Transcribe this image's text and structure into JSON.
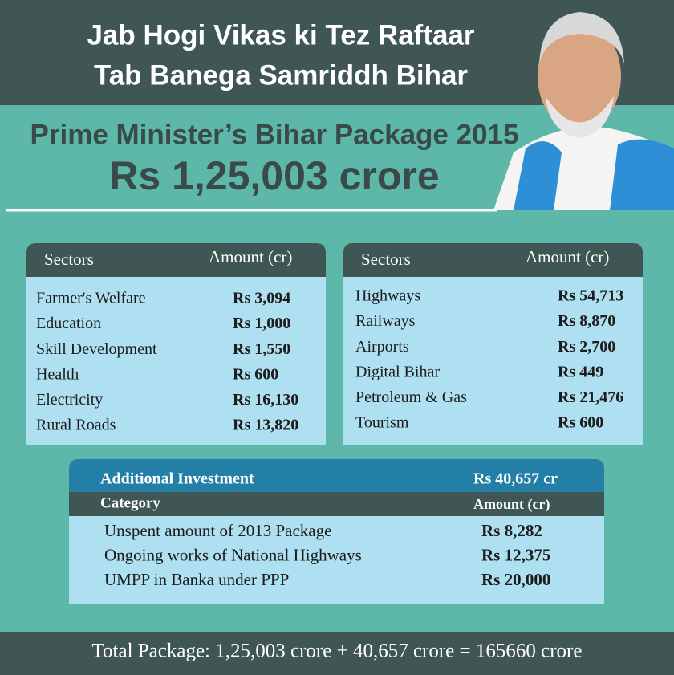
{
  "header": {
    "lines": [
      "Jab Hogi Vikas ki Tez Raftaar",
      "Tab Banega Samriddh Bihar"
    ]
  },
  "package": {
    "title": "Prime Minister’s Bihar Package 2015",
    "amount": "Rs 1,25,003 crore"
  },
  "tables": [
    {
      "headers": [
        "Sectors",
        "Amount (cr)"
      ],
      "rows": [
        [
          "Farmer's Welfare",
          "Rs 3,094"
        ],
        [
          "Education",
          "Rs 1,000"
        ],
        [
          "Skill Development",
          "Rs 1,550"
        ],
        [
          "Health",
          "Rs 600"
        ],
        [
          "Electricity",
          "Rs 16,130"
        ],
        [
          "Rural Roads",
          "Rs 13,820"
        ]
      ]
    },
    {
      "headers": [
        "Sectors",
        "Amount (cr)"
      ],
      "rows": [
        [
          "Highways",
          "Rs 54,713"
        ],
        [
          "Railways",
          "Rs 8,870"
        ],
        [
          "Airports",
          "Rs 2,700"
        ],
        [
          "Digital Bihar",
          "Rs 449"
        ],
        [
          "Petroleum & Gas",
          "Rs 21,476"
        ],
        [
          "Tourism",
          "Rs 600"
        ]
      ]
    }
  ],
  "additional": {
    "title": "Additional Investment",
    "total": "Rs 40,657 cr",
    "headers": [
      "Category",
      "Amount (cr)"
    ],
    "rows": [
      [
        "Unspent amount of 2013 Package",
        "Rs 8,282"
      ],
      [
        "Ongoing works of National Highways",
        "Rs 12,375"
      ],
      [
        "UMPP in Banka under PPP",
        "Rs 20,000"
      ]
    ]
  },
  "footer": "Total Package: 1,25,003 crore + 40,657 crore = 165660 crore"
}
